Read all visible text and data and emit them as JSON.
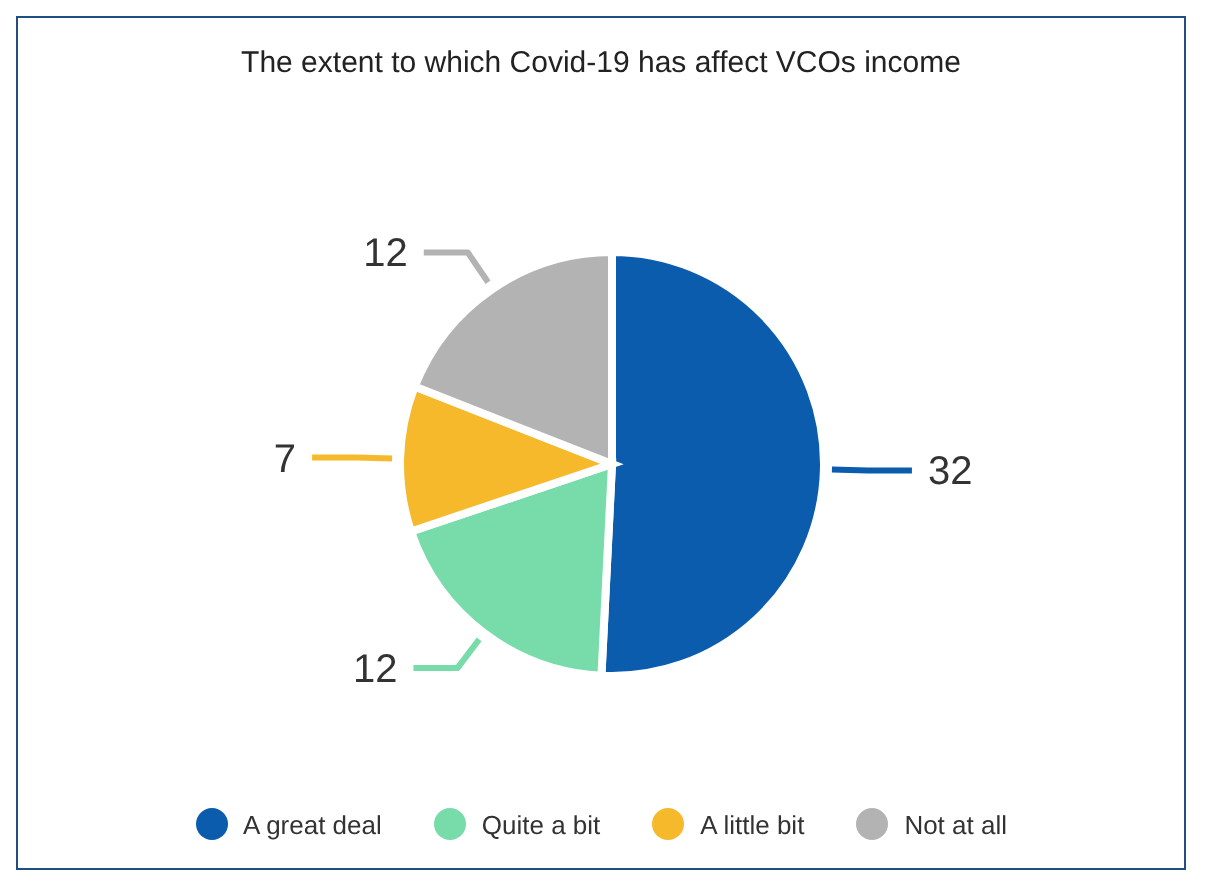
{
  "chart_data": {
    "type": "pie",
    "title": "The extent to which Covid-19 has affect VCOs income",
    "categories": [
      "A great deal",
      "Quite a bit",
      "A little bit",
      "Not at all"
    ],
    "values": [
      32,
      12,
      7,
      12
    ],
    "colors": [
      "#0b5cad",
      "#77dcaa",
      "#f6b92b",
      "#b3b3b3"
    ],
    "data_labels": true,
    "legend": "bottom"
  }
}
